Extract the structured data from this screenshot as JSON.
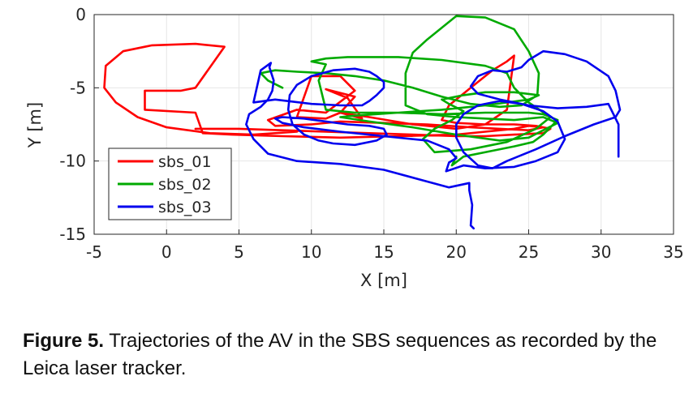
{
  "chart_data": {
    "type": "line",
    "xlabel": "X [m]",
    "ylabel": "Y [m]",
    "xlim": [
      -5,
      35
    ],
    "ylim": [
      -15,
      0
    ],
    "xticks": [
      -5,
      0,
      5,
      10,
      15,
      20,
      25,
      30,
      35
    ],
    "yticks": [
      0,
      -5,
      -10,
      -15
    ],
    "grid": true,
    "legend_position": "bottom-left",
    "series": [
      {
        "name": "sbs_01",
        "color": "#ff0000",
        "x": [
          9,
          6,
          3,
          0,
          -2,
          -3.5,
          -4.3,
          -4.2,
          -3,
          -1.5,
          -1,
          2,
          4,
          2,
          1,
          -1.5,
          -1.5,
          2,
          2.5,
          4.5,
          8,
          12,
          16,
          20,
          22,
          24,
          25,
          26,
          25,
          23,
          21,
          18,
          15,
          12,
          10,
          7.5,
          7,
          9,
          11,
          13,
          12,
          10,
          9,
          11,
          12,
          13.5,
          12.5,
          11,
          13,
          12,
          14,
          17,
          20,
          22,
          23.5,
          24,
          23.5,
          22.5,
          21,
          19.5,
          19,
          20,
          22,
          24,
          25.5,
          26.5,
          26,
          24,
          22,
          20,
          17,
          14,
          11,
          8,
          5,
          2
        ],
        "y": [
          -8,
          -8.2,
          -8.1,
          -7.7,
          -7,
          -6,
          -5,
          -3.5,
          -2.5,
          -2.2,
          -2.1,
          -2,
          -2.2,
          -5,
          -5.2,
          -5.2,
          -6.5,
          -6.7,
          -8.1,
          -8.2,
          -8.3,
          -8.4,
          -8.3,
          -8.2,
          -8,
          -7.8,
          -7.6,
          -7.7,
          -7.9,
          -7.8,
          -7.7,
          -7.5,
          -7.4,
          -7.3,
          -7.5,
          -7.6,
          -7.2,
          -6.5,
          -6.7,
          -5.2,
          -4.2,
          -4.2,
          -7,
          -7.1,
          -6.7,
          -7.1,
          -5.7,
          -5.1,
          -5.6,
          -6.7,
          -7,
          -7.5,
          -7.8,
          -7.5,
          -6.5,
          -2.8,
          -3.2,
          -3.8,
          -5,
          -6.2,
          -7.2,
          -7.4,
          -7.5,
          -7.5,
          -7.6,
          -7.8,
          -8.1,
          -8.2,
          -8.3,
          -8.3,
          -8.2,
          -8.1,
          -8,
          -7.9,
          -7.8,
          -7.8
        ]
      },
      {
        "name": "sbs_02",
        "color": "#00aa00",
        "x": [
          20,
          19.7,
          20.5,
          22.5,
          24,
          25.3,
          26,
          27,
          26,
          25,
          22,
          19,
          16,
          13,
          11,
          10.5,
          11,
          10,
          11,
          12.5,
          16,
          19,
          22,
          23.5,
          24,
          25,
          26.5,
          25.5,
          23.5,
          21,
          18.5,
          17.7,
          18.5,
          19.7,
          20.5,
          19.5,
          19,
          20.5,
          22,
          24,
          25.7,
          25,
          22,
          19,
          16,
          13,
          12,
          14,
          17,
          20,
          23,
          25,
          27,
          26,
          24,
          22,
          20,
          18,
          16.5,
          16.5,
          17,
          18,
          20,
          22,
          24,
          25,
          25.7,
          25.6,
          24.5,
          23,
          21,
          19,
          17,
          15,
          13,
          11,
          9,
          7.5,
          6.5,
          7,
          8
        ],
        "y": [
          -9.7,
          -10.3,
          -9.7,
          -9.3,
          -9,
          -8.7,
          -8.2,
          -7.2,
          -6.8,
          -6.7,
          -6.7,
          -6.8,
          -6.7,
          -6.7,
          -6.5,
          -4.5,
          -3.4,
          -3.2,
          -3,
          -2.9,
          -2.9,
          -3.1,
          -3.5,
          -4,
          -5,
          -6,
          -7,
          -7.8,
          -8.7,
          -9.2,
          -9.4,
          -8.5,
          -7.8,
          -7.2,
          -6.6,
          -6.1,
          -5.8,
          -5.5,
          -5.3,
          -5.3,
          -5.5,
          -5.8,
          -6.2,
          -6.5,
          -6.7,
          -6.9,
          -7,
          -7.3,
          -7.7,
          -8.2,
          -8.6,
          -8.4,
          -7.4,
          -7,
          -7.2,
          -7.1,
          -7,
          -6.8,
          -6.2,
          -4,
          -2.6,
          -1.7,
          -0.1,
          -0.2,
          -1,
          -2.5,
          -4,
          -5.5,
          -6.2,
          -6.3,
          -6.1,
          -5.6,
          -5,
          -4.5,
          -4.2,
          -4,
          -3.9,
          -3.8,
          -4,
          -4.5,
          -5
        ]
      },
      {
        "name": "sbs_03",
        "color": "#0000ee",
        "x": [
          21.2,
          21,
          21.1,
          20.9,
          20.9,
          19.5,
          18,
          15,
          12,
          9,
          7,
          6,
          5.5,
          5.7,
          6.5,
          7,
          7.3,
          7.4,
          7.1,
          7.2,
          6.5,
          6,
          7.5,
          10,
          12,
          13.5,
          14,
          14.5,
          15,
          15,
          14.5,
          14,
          13,
          11.5,
          10,
          9,
          8.5,
          8.4,
          8.7,
          9.5,
          10.5,
          11.5,
          13,
          14.5,
          15.2,
          15,
          14,
          12.5,
          11,
          9.5,
          8,
          7.5,
          8,
          9.5,
          12,
          15,
          18,
          19.5,
          20,
          19.5,
          19.3,
          20.5,
          22,
          24,
          25.5,
          27,
          27.5,
          27,
          26,
          24.5,
          23,
          21.5,
          20.5,
          20,
          20,
          20.5,
          21.5,
          22.5,
          23.5,
          25.5,
          27.5,
          29.5,
          31,
          31.3,
          31,
          30.5,
          29,
          27.5,
          26,
          25,
          24.5,
          23.5,
          22.5,
          21.5,
          21,
          21.5,
          23,
          25,
          27,
          29,
          30.5,
          31.2,
          31.2
        ],
        "y": [
          -14.6,
          -14.4,
          -13,
          -12,
          -11.5,
          -11.8,
          -11.4,
          -10.6,
          -10.2,
          -10,
          -9.5,
          -8.5,
          -7.5,
          -6.8,
          -6.3,
          -5.8,
          -5.2,
          -4.5,
          -3.6,
          -3.3,
          -3.8,
          -6,
          -5.8,
          -6.1,
          -6.2,
          -6.2,
          -5.9,
          -5.5,
          -5,
          -4.6,
          -4.2,
          -3.9,
          -3.7,
          -3.8,
          -4.2,
          -4.8,
          -5.5,
          -6.5,
          -7.5,
          -8.2,
          -8.6,
          -8.8,
          -8.9,
          -8.6,
          -8.2,
          -7.8,
          -7.6,
          -7.5,
          -7.3,
          -7.1,
          -7,
          -7.1,
          -7.4,
          -7.7,
          -8,
          -8.3,
          -8.6,
          -9.2,
          -9.8,
          -10.1,
          -10.7,
          -10.3,
          -10.5,
          -10.4,
          -10,
          -9.4,
          -8.5,
          -7.3,
          -6.6,
          -6.1,
          -5.9,
          -6.2,
          -6.8,
          -7.5,
          -8.4,
          -9.4,
          -10.3,
          -10.5,
          -10,
          -9.2,
          -8.3,
          -7.5,
          -7,
          -6.5,
          -5.2,
          -4.2,
          -3.2,
          -2.7,
          -2.5,
          -3.1,
          -3.6,
          -3.9,
          -3.8,
          -4.2,
          -4.9,
          -5.4,
          -5.8,
          -6.2,
          -6.4,
          -6.3,
          -6.1,
          -7.5,
          -9.7
        ]
      }
    ]
  },
  "caption": {
    "label": "Figure 5.",
    "text": " Trajectories of the AV in the SBS sequences as recorded by the Leica laser tracker."
  }
}
